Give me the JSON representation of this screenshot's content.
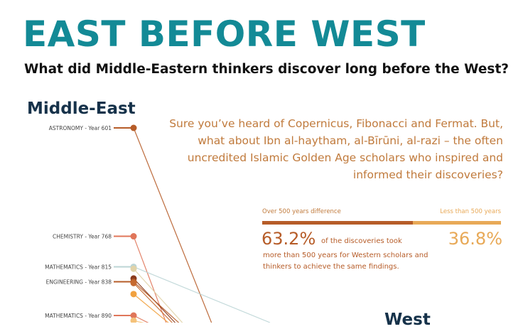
{
  "header": {
    "title": "EAST BEFORE WEST",
    "subtitle": "What did Middle-Eastern thinkers discover long before the West?"
  },
  "regions": {
    "left": "Middle-East",
    "right": "West"
  },
  "intro": "Sure you’ve heard of Copernicus, Fibonacci and Fermat. But, what about Ibn al-haytham, al-Bīrūni, al-razi – the often uncredited Islamic Golden Age scholars who inspired and informed their discoveries?",
  "stats": {
    "left_label": "Over 500 years difference",
    "right_label": "Less than 500 years",
    "left_pct": "63.2%",
    "left_fraction": 0.632,
    "right_pct": "36.8%",
    "right_fraction": 0.368,
    "note_inline": "of the discoveries took",
    "note_rest": "more than 500 years for Western scholars and thinkers to achieve the same findings.",
    "colors": {
      "over": "#b65c28",
      "under": "#e8a957"
    }
  },
  "chart_data": {
    "type": "slope",
    "y_scale": "year",
    "points": [
      {
        "label": "ASTRONOMY - Year 601",
        "year": 601,
        "color": "#b65c28",
        "labeled": true
      },
      {
        "label": "CHEMISTRY - Year 768",
        "year": 768,
        "color": "#e0765a",
        "labeled": true
      },
      {
        "label": "MATHEMATICS - Year 815",
        "year": 815,
        "color": "#bcd5d6",
        "labeled": true
      },
      {
        "label": "",
        "year": 818,
        "color": "#e1d3a8",
        "labeled": false
      },
      {
        "label": "",
        "year": 833,
        "color": "#8a3a1c",
        "labeled": false
      },
      {
        "label": "ENGINEERING - Year 838",
        "year": 838,
        "color": "#b65c28",
        "labeled": true
      },
      {
        "label": "",
        "year": 840,
        "color": "#c66a2f",
        "labeled": false
      },
      {
        "label": "",
        "year": 857,
        "color": "#f1a13f",
        "labeled": false
      },
      {
        "label": "MATHEMATICS - Year 890",
        "year": 890,
        "color": "#e0765a",
        "labeled": true
      },
      {
        "label": "",
        "year": 898,
        "color": "#f5c27a",
        "labeled": false
      }
    ]
  }
}
